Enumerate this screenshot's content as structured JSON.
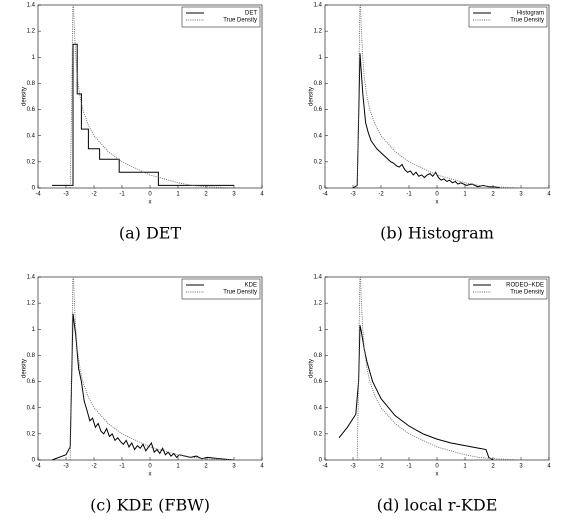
{
  "chart_data": [
    {
      "type": "line",
      "caption": "(a) DET",
      "xlabel": "x",
      "ylabel": "density",
      "xlim": [
        -4,
        4
      ],
      "xticks": [
        -4,
        -3,
        -2,
        -1,
        0,
        1,
        2,
        3,
        4
      ],
      "ylim": [
        0,
        1.4
      ],
      "yticks": [
        0,
        0.2,
        0.4,
        0.6,
        0.8,
        1,
        1.2,
        1.4
      ],
      "legend": "upper right",
      "series": [
        {
          "name": "DET",
          "color": "#000000",
          "style": "solid",
          "x": [
            -3.5,
            -2.75,
            -2.75,
            -2.6,
            -2.6,
            -2.45,
            -2.45,
            -2.2,
            -2.2,
            -1.8,
            -1.8,
            -1.1,
            -1.1,
            0.3,
            0.3,
            3.0
          ],
          "values": [
            0.02,
            0.02,
            1.1,
            1.1,
            0.72,
            0.72,
            0.45,
            0.45,
            0.3,
            0.3,
            0.22,
            0.22,
            0.12,
            0.12,
            0.02,
            0.02
          ]
        },
        {
          "name": "True Density",
          "color": "#666666",
          "style": "dotted",
          "x": [
            -2.85,
            -2.8,
            -2.75,
            -2.7,
            -2.65,
            -2.6,
            -2.5,
            -2.4,
            -2.2,
            -2,
            -1.5,
            -1,
            -0.5,
            0,
            0.5,
            1,
            1.5,
            2,
            2.5,
            3
          ],
          "values": [
            0,
            0.6,
            1.5,
            1.2,
            1.0,
            0.85,
            0.7,
            0.6,
            0.48,
            0.4,
            0.28,
            0.2,
            0.15,
            0.1,
            0.07,
            0.04,
            0.02,
            0.01,
            0.005,
            0
          ]
        }
      ]
    },
    {
      "type": "line",
      "caption": "(b) Histogram",
      "xlabel": "x",
      "ylabel": "density",
      "xlim": [
        -4,
        4
      ],
      "xticks": [
        -4,
        -3,
        -2,
        -1,
        0,
        1,
        2,
        3,
        4
      ],
      "ylim": [
        0,
        1.4
      ],
      "yticks": [
        0,
        0.2,
        0.4,
        0.6,
        0.8,
        1,
        1.2,
        1.4
      ],
      "legend": "upper right",
      "series": [
        {
          "name": "Histogram",
          "color": "#000000",
          "style": "solid",
          "x": [
            -3.0,
            -2.85,
            -2.75,
            -2.65,
            -2.55,
            -2.45,
            -2.35,
            -2.25,
            -2.15,
            -2.05,
            -1.95,
            -1.85,
            -1.75,
            -1.65,
            -1.55,
            -1.45,
            -1.35,
            -1.25,
            -1.15,
            -1.05,
            -0.95,
            -0.85,
            -0.75,
            -0.65,
            -0.55,
            -0.45,
            -0.35,
            -0.25,
            -0.15,
            -0.05,
            0.05,
            0.15,
            0.25,
            0.35,
            0.45,
            0.55,
            0.65,
            0.75,
            0.85,
            0.95,
            1.05,
            1.25,
            1.45,
            1.65,
            1.85,
            2.05,
            2.25
          ],
          "values": [
            0,
            0.02,
            1.03,
            0.72,
            0.5,
            0.42,
            0.36,
            0.33,
            0.3,
            0.28,
            0.26,
            0.24,
            0.22,
            0.2,
            0.19,
            0.17,
            0.16,
            0.18,
            0.14,
            0.12,
            0.13,
            0.1,
            0.12,
            0.09,
            0.1,
            0.08,
            0.1,
            0.11,
            0.09,
            0.12,
            0.08,
            0.06,
            0.07,
            0.05,
            0.06,
            0.04,
            0.05,
            0.03,
            0.04,
            0.03,
            0.02,
            0.03,
            0.01,
            0.02,
            0.01,
            0.01,
            0
          ]
        },
        {
          "name": "True Density",
          "color": "#666666",
          "style": "dotted",
          "x": [
            -2.85,
            -2.8,
            -2.75,
            -2.7,
            -2.65,
            -2.6,
            -2.5,
            -2.4,
            -2.2,
            -2,
            -1.5,
            -1,
            -0.5,
            0,
            0.5,
            1,
            1.5,
            2,
            2.5,
            3
          ],
          "values": [
            0,
            0.6,
            1.5,
            1.2,
            1.0,
            0.85,
            0.7,
            0.6,
            0.48,
            0.4,
            0.28,
            0.2,
            0.15,
            0.1,
            0.07,
            0.04,
            0.02,
            0.01,
            0.005,
            0
          ]
        }
      ]
    },
    {
      "type": "line",
      "caption": "(c) KDE (FBW)",
      "xlabel": "x",
      "ylabel": "density",
      "xlim": [
        -4,
        4
      ],
      "xticks": [
        -4,
        -3,
        -2,
        -1,
        0,
        1,
        2,
        3,
        4
      ],
      "ylim": [
        0,
        1.4
      ],
      "yticks": [
        0,
        0.2,
        0.4,
        0.6,
        0.8,
        1,
        1.2,
        1.4
      ],
      "legend": "upper right",
      "series": [
        {
          "name": "KDE",
          "color": "#000000",
          "style": "solid",
          "x": [
            -3.5,
            -3.0,
            -2.85,
            -2.75,
            -2.65,
            -2.55,
            -2.45,
            -2.35,
            -2.25,
            -2.15,
            -2.05,
            -1.95,
            -1.85,
            -1.75,
            -1.65,
            -1.55,
            -1.45,
            -1.35,
            -1.25,
            -1.15,
            -1.05,
            -0.95,
            -0.85,
            -0.75,
            -0.65,
            -0.55,
            -0.45,
            -0.35,
            -0.25,
            -0.15,
            -0.05,
            0.05,
            0.15,
            0.25,
            0.35,
            0.45,
            0.55,
            0.65,
            0.75,
            0.85,
            0.95,
            1.05,
            1.25,
            1.45,
            1.65,
            1.85,
            2.05,
            2.5,
            3.0
          ],
          "values": [
            0,
            0.04,
            0.1,
            1.12,
            0.95,
            0.7,
            0.6,
            0.45,
            0.38,
            0.3,
            0.32,
            0.25,
            0.28,
            0.22,
            0.2,
            0.24,
            0.18,
            0.2,
            0.15,
            0.17,
            0.14,
            0.12,
            0.15,
            0.1,
            0.13,
            0.08,
            0.11,
            0.09,
            0.12,
            0.07,
            0.1,
            0.13,
            0.06,
            0.08,
            0.05,
            0.09,
            0.04,
            0.06,
            0.03,
            0.05,
            0.02,
            0.04,
            0.03,
            0.02,
            0.03,
            0.01,
            0.02,
            0.01,
            0
          ]
        },
        {
          "name": "True Density",
          "color": "#666666",
          "style": "dotted",
          "x": [
            -2.85,
            -2.8,
            -2.75,
            -2.7,
            -2.65,
            -2.6,
            -2.5,
            -2.4,
            -2.2,
            -2,
            -1.5,
            -1,
            -0.5,
            0,
            0.5,
            1,
            1.5,
            2,
            2.5,
            3
          ],
          "values": [
            0,
            0.6,
            1.5,
            1.2,
            1.0,
            0.85,
            0.7,
            0.6,
            0.48,
            0.4,
            0.28,
            0.2,
            0.15,
            0.1,
            0.07,
            0.04,
            0.02,
            0.01,
            0.005,
            0
          ]
        }
      ]
    },
    {
      "type": "line",
      "caption": "(d) local r-KDE",
      "xlabel": "x",
      "ylabel": "density",
      "xlim": [
        -4,
        4
      ],
      "xticks": [
        -4,
        -3,
        -2,
        -1,
        0,
        1,
        2,
        3,
        4
      ],
      "ylim": [
        0,
        1.4
      ],
      "yticks": [
        0,
        0.2,
        0.4,
        0.6,
        0.8,
        1,
        1.2,
        1.4
      ],
      "legend": "upper right",
      "series": [
        {
          "name": "RODEO−KDE",
          "color": "#000000",
          "style": "solid",
          "x": [
            -3.5,
            -3.2,
            -2.9,
            -2.8,
            -2.75,
            -2.7,
            -2.6,
            -2.5,
            -2.3,
            -2,
            -1.5,
            -1,
            -0.5,
            0,
            0.5,
            1,
            1.5,
            1.75,
            1.85,
            2.0
          ],
          "values": [
            0.17,
            0.25,
            0.35,
            0.6,
            1.03,
            0.98,
            0.85,
            0.75,
            0.6,
            0.47,
            0.34,
            0.26,
            0.2,
            0.16,
            0.13,
            0.11,
            0.09,
            0.08,
            0.02,
            0
          ]
        },
        {
          "name": "True Density",
          "color": "#666666",
          "style": "dotted",
          "x": [
            -2.85,
            -2.8,
            -2.75,
            -2.7,
            -2.65,
            -2.6,
            -2.5,
            -2.4,
            -2.2,
            -2,
            -1.5,
            -1,
            -0.5,
            0,
            0.5,
            1,
            1.5,
            2,
            2.5,
            3
          ],
          "values": [
            0,
            0.6,
            1.5,
            1.2,
            1.0,
            0.85,
            0.7,
            0.6,
            0.48,
            0.4,
            0.28,
            0.2,
            0.15,
            0.1,
            0.07,
            0.04,
            0.02,
            0.01,
            0.005,
            0
          ]
        }
      ]
    }
  ]
}
